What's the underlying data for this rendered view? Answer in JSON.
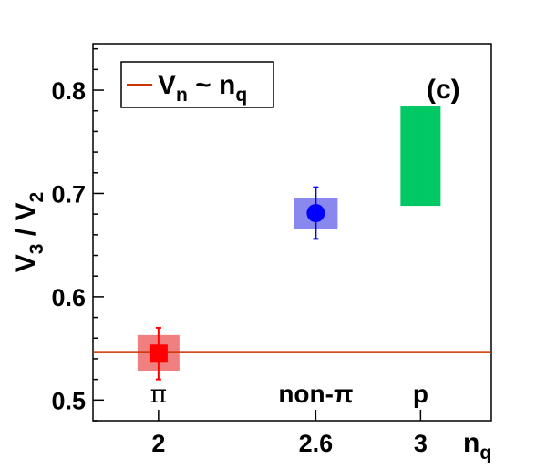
{
  "chart_data": {
    "type": "scatter",
    "panel_label": "(c)",
    "xlabel": {
      "main": "n",
      "sub": "q"
    },
    "ylabel": {
      "a": "V",
      "a_sub": "3",
      "sep": " / ",
      "b": "V",
      "b_sub": "2"
    },
    "xlim": [
      1.75,
      3.27
    ],
    "ylim": [
      0.48,
      0.845
    ],
    "x_ticks": [
      2,
      2.6,
      3
    ],
    "x_tick_labels": [
      "2",
      "2.6",
      "3"
    ],
    "y_ticks": [
      0.5,
      0.6,
      0.7,
      0.8
    ],
    "y_tick_labels": [
      "0.5",
      "0.6",
      "0.7",
      "0.8"
    ],
    "grid": false,
    "legend_position": "top-left",
    "legend": {
      "main": "V",
      "main_sub": "n",
      "sep": " ~ ",
      "rhs": "n",
      "rhs_sub": "q",
      "color": "#cc3300"
    },
    "points": [
      {
        "label": "π",
        "x": 2.0,
        "y": 0.545,
        "err_low": 0.025,
        "err_high": 0.025,
        "band_low": 0.528,
        "band_high": 0.563,
        "marker": "square",
        "color": "#ff0000",
        "band_color": "#f08080"
      },
      {
        "label": "non-π",
        "x": 2.6,
        "y": 0.681,
        "err_low": 0.025,
        "err_high": 0.025,
        "band_low": 0.666,
        "band_high": 0.696,
        "marker": "circle",
        "color": "#0000ff",
        "band_color": "#8888ee"
      },
      {
        "label": "p",
        "x": 3.0,
        "y": null,
        "err_low": null,
        "err_high": null,
        "band_low": 0.688,
        "band_high": 0.785,
        "marker": "none",
        "color": "#00c864",
        "band_color": "#00c864"
      }
    ],
    "reference_line": {
      "y": 0.546,
      "color": "#cc3300"
    }
  }
}
